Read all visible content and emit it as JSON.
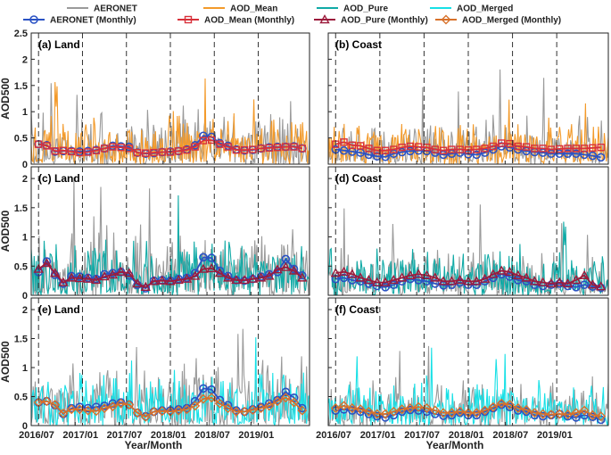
{
  "figure": {
    "xlabel": "Year/Month",
    "ylabel": "AOD500"
  },
  "legend": [
    {
      "key": "aeronet",
      "label": "AERONET",
      "color": "#9a9a9a",
      "style": "line"
    },
    {
      "key": "mean",
      "label": "AOD_Mean",
      "color": "#f39a2a",
      "style": "line"
    },
    {
      "key": "pure",
      "label": "AOD_Pure",
      "color": "#10aaa6",
      "style": "line"
    },
    {
      "key": "merged",
      "label": "AOD_Merged",
      "color": "#17e0e6",
      "style": "line"
    },
    {
      "key": "aer_m",
      "label": "AERONET (Monthly)",
      "color": "#2a52c4",
      "style": "circle"
    },
    {
      "key": "mean_m",
      "label": "AOD_Mean (Monthly)",
      "color": "#d8313a",
      "style": "square"
    },
    {
      "key": "pure_m",
      "label": "AOD_Pure (Monthly)",
      "color": "#9c1b3c",
      "style": "triangle"
    },
    {
      "key": "merged_m",
      "label": "AOD_Merged (Monthly)",
      "color": "#d8712a",
      "style": "diamond"
    }
  ],
  "chart_data": {
    "type": "line",
    "x_tick_labels": [
      "2016/07",
      "2017/01",
      "2017/07",
      "2018/01",
      "2018/07",
      "2019/01"
    ],
    "month_range": [
      0,
      38
    ],
    "dashed_month_positions": [
      1,
      7,
      13,
      19,
      25,
      31
    ],
    "xtick_month_positions": [
      0,
      6,
      12,
      18,
      24,
      30
    ],
    "y_ticks": {
      "row1": [
        "0",
        "0.5",
        "1",
        "1.5",
        "2",
        "2.5"
      ],
      "row2": [
        "0",
        "0.5",
        "1",
        "1.5",
        "2"
      ],
      "row3": [
        "0",
        "0.5",
        "1",
        "1.5",
        "2"
      ]
    },
    "ylim": {
      "row1": [
        0,
        2.5
      ],
      "row2": [
        0,
        2.2
      ],
      "row3": [
        0,
        2.2
      ]
    },
    "panels": [
      {
        "title": "(a) Land",
        "row": 0,
        "col": 0,
        "product": "mean",
        "product_m": "mean_m",
        "aeronet_m": [
          0.38,
          0.36,
          0.24,
          0.25,
          0.25,
          0.24,
          0.25,
          0.27,
          0.3,
          0.35,
          0.34,
          0.33,
          0.22,
          0.2,
          0.21,
          0.23,
          0.24,
          0.25,
          0.28,
          0.36,
          0.54,
          0.52,
          0.4,
          0.35,
          0.28,
          0.26,
          0.27,
          0.3,
          0.32,
          0.33,
          0.33,
          0.34,
          0.3
        ],
        "product_monthly": [
          0.38,
          0.35,
          0.25,
          0.26,
          0.24,
          0.22,
          0.23,
          0.26,
          0.3,
          0.33,
          0.32,
          0.3,
          0.22,
          0.21,
          0.22,
          0.23,
          0.23,
          0.25,
          0.27,
          0.33,
          0.45,
          0.46,
          0.38,
          0.33,
          0.27,
          0.27,
          0.28,
          0.3,
          0.31,
          0.32,
          0.33,
          0.33,
          0.3
        ],
        "daily_peak": 0.55
      },
      {
        "title": "(b) Coast",
        "row": 0,
        "col": 1,
        "product": "mean",
        "product_m": "mean_m",
        "aeronet_m": [
          0.28,
          0.26,
          0.24,
          0.22,
          0.18,
          0.15,
          0.14,
          0.2,
          0.23,
          0.25,
          0.26,
          0.25,
          0.22,
          0.18,
          0.2,
          0.22,
          0.19,
          0.18,
          0.22,
          0.28,
          0.34,
          0.32,
          0.28,
          0.25,
          0.23,
          0.22,
          0.2,
          0.2,
          0.2,
          0.2,
          0.18,
          0.16,
          0.13
        ],
        "product_monthly": [
          0.38,
          0.42,
          0.36,
          0.35,
          0.3,
          0.26,
          0.26,
          0.28,
          0.32,
          0.34,
          0.33,
          0.32,
          0.28,
          0.26,
          0.28,
          0.28,
          0.27,
          0.28,
          0.3,
          0.34,
          0.4,
          0.39,
          0.34,
          0.33,
          0.3,
          0.3,
          0.28,
          0.29,
          0.3,
          0.3,
          0.3,
          0.31,
          0.32
        ],
        "daily_peak": 0.5
      },
      {
        "title": "(c) Land",
        "row": 1,
        "col": 0,
        "product": "pure",
        "product_m": "pure_m",
        "aeronet_m": [
          0.4,
          0.58,
          0.35,
          0.2,
          0.33,
          0.32,
          0.3,
          0.28,
          0.36,
          0.38,
          0.4,
          0.34,
          0.18,
          0.12,
          0.25,
          0.26,
          0.25,
          0.28,
          0.3,
          0.38,
          0.65,
          0.64,
          0.42,
          0.33,
          0.26,
          0.25,
          0.28,
          0.32,
          0.36,
          0.4,
          0.62,
          0.45,
          0.34
        ],
        "product_monthly": [
          0.45,
          0.55,
          0.38,
          0.22,
          0.3,
          0.29,
          0.28,
          0.26,
          0.32,
          0.35,
          0.4,
          0.38,
          0.2,
          0.14,
          0.24,
          0.25,
          0.24,
          0.26,
          0.28,
          0.33,
          0.45,
          0.46,
          0.38,
          0.3,
          0.26,
          0.26,
          0.28,
          0.3,
          0.33,
          0.44,
          0.48,
          0.42,
          0.3
        ],
        "daily_peak": 0.6
      },
      {
        "title": "(d) Coast",
        "row": 1,
        "col": 1,
        "product": "pure",
        "product_m": "pure_m",
        "aeronet_m": [
          0.28,
          0.3,
          0.26,
          0.24,
          0.2,
          0.16,
          0.14,
          0.18,
          0.24,
          0.28,
          0.26,
          0.24,
          0.2,
          0.17,
          0.18,
          0.22,
          0.18,
          0.18,
          0.24,
          0.3,
          0.36,
          0.32,
          0.26,
          0.24,
          0.18,
          0.16,
          0.18,
          0.2,
          0.16,
          0.14,
          0.18,
          0.15,
          0.13
        ],
        "product_monthly": [
          0.38,
          0.4,
          0.36,
          0.3,
          0.26,
          0.22,
          0.22,
          0.26,
          0.3,
          0.34,
          0.36,
          0.34,
          0.3,
          0.24,
          0.24,
          0.26,
          0.24,
          0.24,
          0.28,
          0.36,
          0.42,
          0.4,
          0.34,
          0.3,
          0.24,
          0.22,
          0.2,
          0.22,
          0.2,
          0.26,
          0.34,
          0.18,
          0.15
        ],
        "daily_peak": 0.45
      },
      {
        "title": "(e) Land",
        "row": 2,
        "col": 0,
        "product": "merged",
        "product_m": "merged_m",
        "aeronet_m": [
          0.4,
          0.42,
          0.35,
          0.2,
          0.3,
          0.32,
          0.3,
          0.32,
          0.34,
          0.38,
          0.4,
          0.36,
          0.22,
          0.16,
          0.24,
          0.26,
          0.26,
          0.28,
          0.3,
          0.42,
          0.64,
          0.62,
          0.44,
          0.35,
          0.26,
          0.24,
          0.28,
          0.32,
          0.38,
          0.44,
          0.58,
          0.48,
          0.3
        ],
        "product_monthly": [
          0.4,
          0.42,
          0.36,
          0.21,
          0.28,
          0.28,
          0.26,
          0.25,
          0.3,
          0.33,
          0.38,
          0.36,
          0.22,
          0.15,
          0.24,
          0.25,
          0.24,
          0.26,
          0.28,
          0.34,
          0.46,
          0.48,
          0.38,
          0.3,
          0.24,
          0.24,
          0.27,
          0.3,
          0.34,
          0.42,
          0.48,
          0.4,
          0.26
        ],
        "daily_peak": 0.6
      },
      {
        "title": "(f) Coast",
        "row": 2,
        "col": 1,
        "product": "merged",
        "product_m": "merged_m",
        "aeronet_m": [
          0.26,
          0.28,
          0.26,
          0.24,
          0.2,
          0.16,
          0.14,
          0.18,
          0.24,
          0.27,
          0.26,
          0.24,
          0.2,
          0.17,
          0.18,
          0.22,
          0.18,
          0.18,
          0.24,
          0.3,
          0.36,
          0.32,
          0.26,
          0.24,
          0.18,
          0.16,
          0.18,
          0.2,
          0.16,
          0.14,
          0.18,
          0.15,
          0.1
        ],
        "product_monthly": [
          0.3,
          0.34,
          0.3,
          0.28,
          0.24,
          0.2,
          0.2,
          0.24,
          0.28,
          0.3,
          0.32,
          0.3,
          0.26,
          0.22,
          0.22,
          0.24,
          0.22,
          0.22,
          0.26,
          0.32,
          0.38,
          0.36,
          0.3,
          0.27,
          0.22,
          0.2,
          0.19,
          0.2,
          0.19,
          0.22,
          0.26,
          0.18,
          0.16
        ],
        "daily_peak": 0.45
      }
    ]
  }
}
